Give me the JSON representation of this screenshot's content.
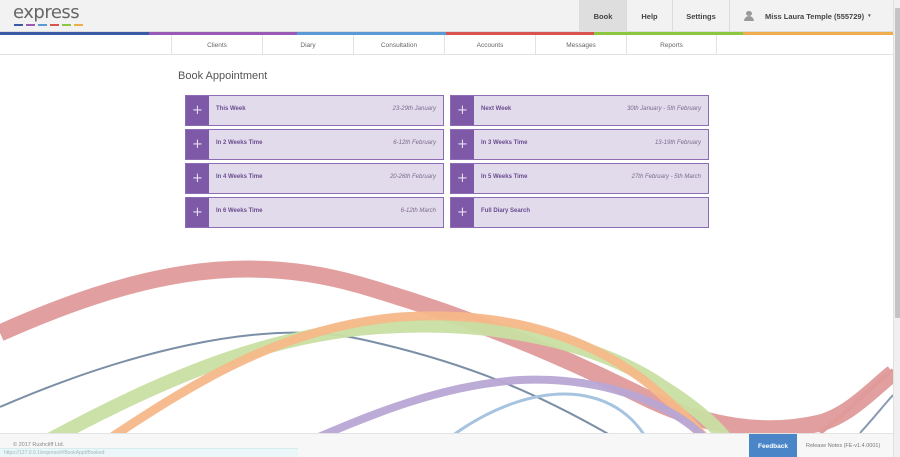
{
  "header": {
    "logo_text": "express",
    "logo_dash_colors": [
      "#3b5aa6",
      "#9b59b6",
      "#5b9bd5",
      "#d9534f",
      "#8dc63f",
      "#f0ad4e"
    ],
    "nav": {
      "book": "Book",
      "help": "Help",
      "settings": "Settings",
      "user": "Miss Laura Temple (555729)",
      "user_icon": "user-icon",
      "caret": "▾"
    },
    "color_bar": [
      "#3b5aa6",
      "#9b59b6",
      "#5b9bd5",
      "#d9534f",
      "#8dc63f",
      "#f0ad4e"
    ]
  },
  "subnav": {
    "items": [
      "Clients",
      "Diary",
      "Consultation",
      "Accounts",
      "Messages",
      "Reports"
    ]
  },
  "main": {
    "title": "Book Appointment",
    "cards": [
      {
        "label": "This Week",
        "date": "23-29th January"
      },
      {
        "label": "Next Week",
        "date": "30th January - 5th February"
      },
      {
        "label": "In 2 Weeks Time",
        "date": "6-12th February"
      },
      {
        "label": "In 3 Weeks Time",
        "date": "13-19th February"
      },
      {
        "label": "In 4 Weeks Time",
        "date": "20-26th February"
      },
      {
        "label": "In 5 Weeks Time",
        "date": "27th February - 5th March"
      },
      {
        "label": "In 6 Weeks Time",
        "date": "6-12th March"
      },
      {
        "label": "Full Diary Search",
        "date": ""
      }
    ],
    "card_plus": "+",
    "accent_color": "#7d59a8",
    "card_bg": "#e2dbec"
  },
  "footer": {
    "copyright": "© 2017 Rushcliff Ltd.",
    "status_url": "https://127.0.0.1/express/#/BookAppt/Booked",
    "feedback": "Feedback",
    "release_notes": "Release Notes (FE-v1.4.0001)",
    "feedback_color": "#4a86c7"
  }
}
